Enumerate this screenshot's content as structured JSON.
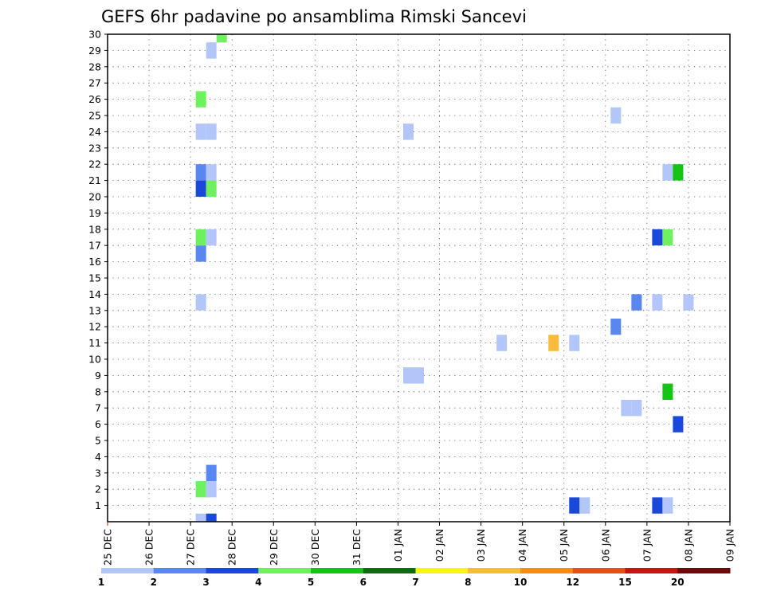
{
  "chart_data": {
    "type": "heatmap",
    "title": "GEFS 6hr padavine po ansamblima Rimski Sancevi",
    "x_ticks": [
      "25 DEC",
      "26 DEC",
      "27 DEC",
      "28 DEC",
      "29 DEC",
      "30 DEC",
      "31 DEC",
      "01 JAN",
      "02 JAN",
      "03 JAN",
      "04 JAN",
      "05 JAN",
      "06 JAN",
      "07 JAN",
      "08 JAN",
      "09 JAN"
    ],
    "y_ticks": [
      "1",
      "2",
      "3",
      "4",
      "5",
      "6",
      "7",
      "8",
      "9",
      "10",
      "11",
      "12",
      "13",
      "14",
      "15",
      "16",
      "17",
      "18",
      "19",
      "20",
      "21",
      "22",
      "23",
      "24",
      "25",
      "26",
      "27",
      "28",
      "29",
      "30"
    ],
    "ylim": [
      0,
      30
    ],
    "grid": true,
    "colorbar": {
      "labels": [
        "1",
        "2",
        "3",
        "4",
        "5",
        "6",
        "7",
        "8",
        "10",
        "12",
        "15",
        "20"
      ],
      "colors": [
        "#b3c6fa",
        "#5a86ef",
        "#1a48db",
        "#6ff05f",
        "#16c416",
        "#0e6e0e",
        "#f6f60e",
        "#f6bc3a",
        "#f68b1a",
        "#e0521a",
        "#c2160e",
        "#6e0a0a"
      ]
    },
    "points": [
      {
        "t": "27 DEC 06",
        "m": 0,
        "v": 1
      },
      {
        "t": "27 DEC 12",
        "m": 0,
        "v": 3
      },
      {
        "t": "05 JAN 06",
        "m": 1,
        "v": 3
      },
      {
        "t": "05 JAN 12",
        "m": 1,
        "v": 1
      },
      {
        "t": "07 JAN 06",
        "m": 1,
        "v": 3
      },
      {
        "t": "07 JAN 12",
        "m": 1,
        "v": 1
      },
      {
        "t": "27 DEC 06",
        "m": 2,
        "v": 4
      },
      {
        "t": "27 DEC 12",
        "m": 2,
        "v": 1
      },
      {
        "t": "27 DEC 12",
        "m": 3,
        "v": 2
      },
      {
        "t": "07 JAN 18",
        "m": 6,
        "v": 3
      },
      {
        "t": "06 JAN 12",
        "m": 7,
        "v": 1
      },
      {
        "t": "06 JAN 18",
        "m": 7,
        "v": 1
      },
      {
        "t": "07 JAN 12",
        "m": 8,
        "v": 5
      },
      {
        "t": "01 JAN 06",
        "m": 9,
        "v": 1
      },
      {
        "t": "01 JAN 12",
        "m": 9,
        "v": 1
      },
      {
        "t": "03 JAN 12",
        "m": 11,
        "v": 1
      },
      {
        "t": "04 JAN 18",
        "m": 11,
        "v": 8
      },
      {
        "t": "05 JAN 06",
        "m": 11,
        "v": 1
      },
      {
        "t": "06 JAN 06",
        "m": 12,
        "v": 2
      },
      {
        "t": "27 DEC 06",
        "m": 13.5,
        "v": 1
      },
      {
        "t": "06 JAN 18",
        "m": 13.5,
        "v": 2
      },
      {
        "t": "07 JAN 06",
        "m": 13.5,
        "v": 1
      },
      {
        "t": "08 JAN 00",
        "m": 13.5,
        "v": 1
      },
      {
        "t": "27 DEC 06",
        "m": 16.5,
        "v": 2
      },
      {
        "t": "27 DEC 06",
        "m": 17.5,
        "v": 4
      },
      {
        "t": "27 DEC 12",
        "m": 17.5,
        "v": 1
      },
      {
        "t": "07 JAN 06",
        "m": 17.5,
        "v": 3
      },
      {
        "t": "07 JAN 12",
        "m": 17.5,
        "v": 4
      },
      {
        "t": "27 DEC 06",
        "m": 20.5,
        "v": 3
      },
      {
        "t": "27 DEC 12",
        "m": 20.5,
        "v": 4
      },
      {
        "t": "27 DEC 06",
        "m": 21.5,
        "v": 2
      },
      {
        "t": "27 DEC 12",
        "m": 21.5,
        "v": 1
      },
      {
        "t": "07 JAN 12",
        "m": 21.5,
        "v": 1
      },
      {
        "t": "07 JAN 18",
        "m": 21.5,
        "v": 5
      },
      {
        "t": "27 DEC 06",
        "m": 24,
        "v": 1
      },
      {
        "t": "27 DEC 12",
        "m": 24,
        "v": 1
      },
      {
        "t": "01 JAN 06",
        "m": 24,
        "v": 1
      },
      {
        "t": "06 JAN 06",
        "m": 25,
        "v": 1
      },
      {
        "t": "27 DEC 06",
        "m": 26,
        "v": 4
      },
      {
        "t": "27 DEC 12",
        "m": 29,
        "v": 1
      },
      {
        "t": "27 DEC 18",
        "m": 30,
        "v": 4
      }
    ]
  }
}
